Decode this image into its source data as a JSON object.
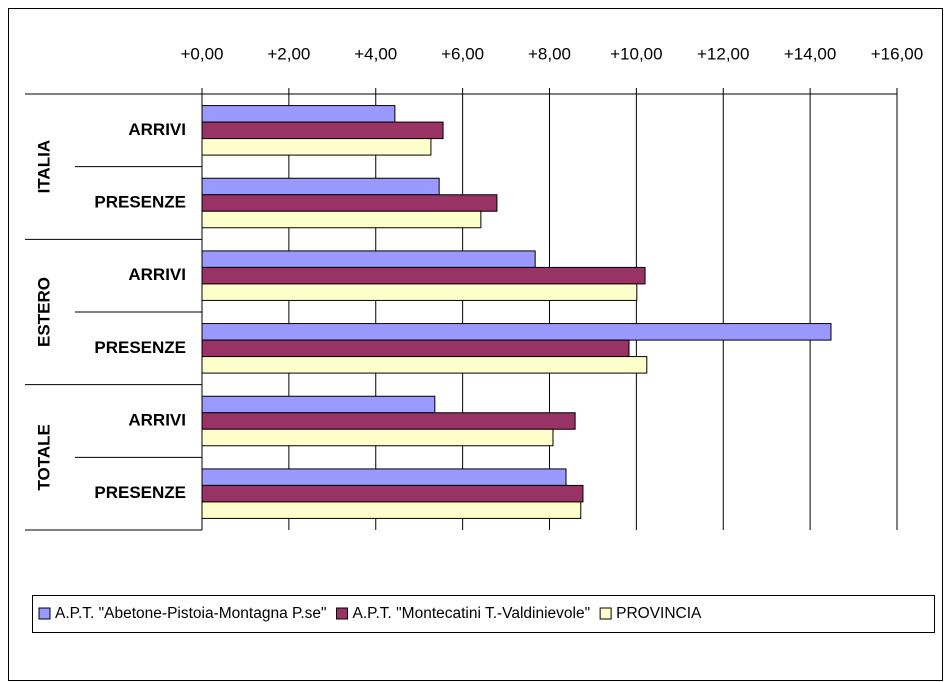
{
  "chart_data": {
    "type": "hbar",
    "categories": [
      "ARRIVI",
      "PRESENZE",
      "ARRIVI",
      "PRESENZE",
      "ARRIVI",
      "PRESENZE"
    ],
    "category_groups": [
      "ITALIA",
      "ESTERO",
      "TOTALE"
    ],
    "series": [
      {
        "name": "A.P.T. \"Abetone-Pistoia-Montagna P.se\"",
        "color": "#9999ff",
        "values": [
          4.44,
          5.46,
          7.67,
          14.48,
          5.36,
          8.38
        ]
      },
      {
        "name": "A.P.T. \"Montecatini T.-Valdinievole\"",
        "color": "#993366",
        "values": [
          5.55,
          6.79,
          10.2,
          9.83,
          8.59,
          8.77
        ]
      },
      {
        "name": "PROVINCIA",
        "color": "#ffffcc",
        "values": [
          5.27,
          6.42,
          10.01,
          10.24,
          8.08,
          8.72
        ]
      }
    ],
    "xlim": [
      0,
      16
    ],
    "xticks": [
      {
        "value": 0,
        "label": "+0,00"
      },
      {
        "value": 2,
        "label": "+2,00"
      },
      {
        "value": 4,
        "label": "+4,00"
      },
      {
        "value": 6,
        "label": "+6,00"
      },
      {
        "value": 8,
        "label": "+8,00"
      },
      {
        "value": 10,
        "label": "+10,00"
      },
      {
        "value": 12,
        "label": "+12,00"
      },
      {
        "value": 14,
        "label": "+14,00"
      },
      {
        "value": 16,
        "label": "+16,00"
      }
    ],
    "grid": true,
    "legend": "bottom"
  }
}
